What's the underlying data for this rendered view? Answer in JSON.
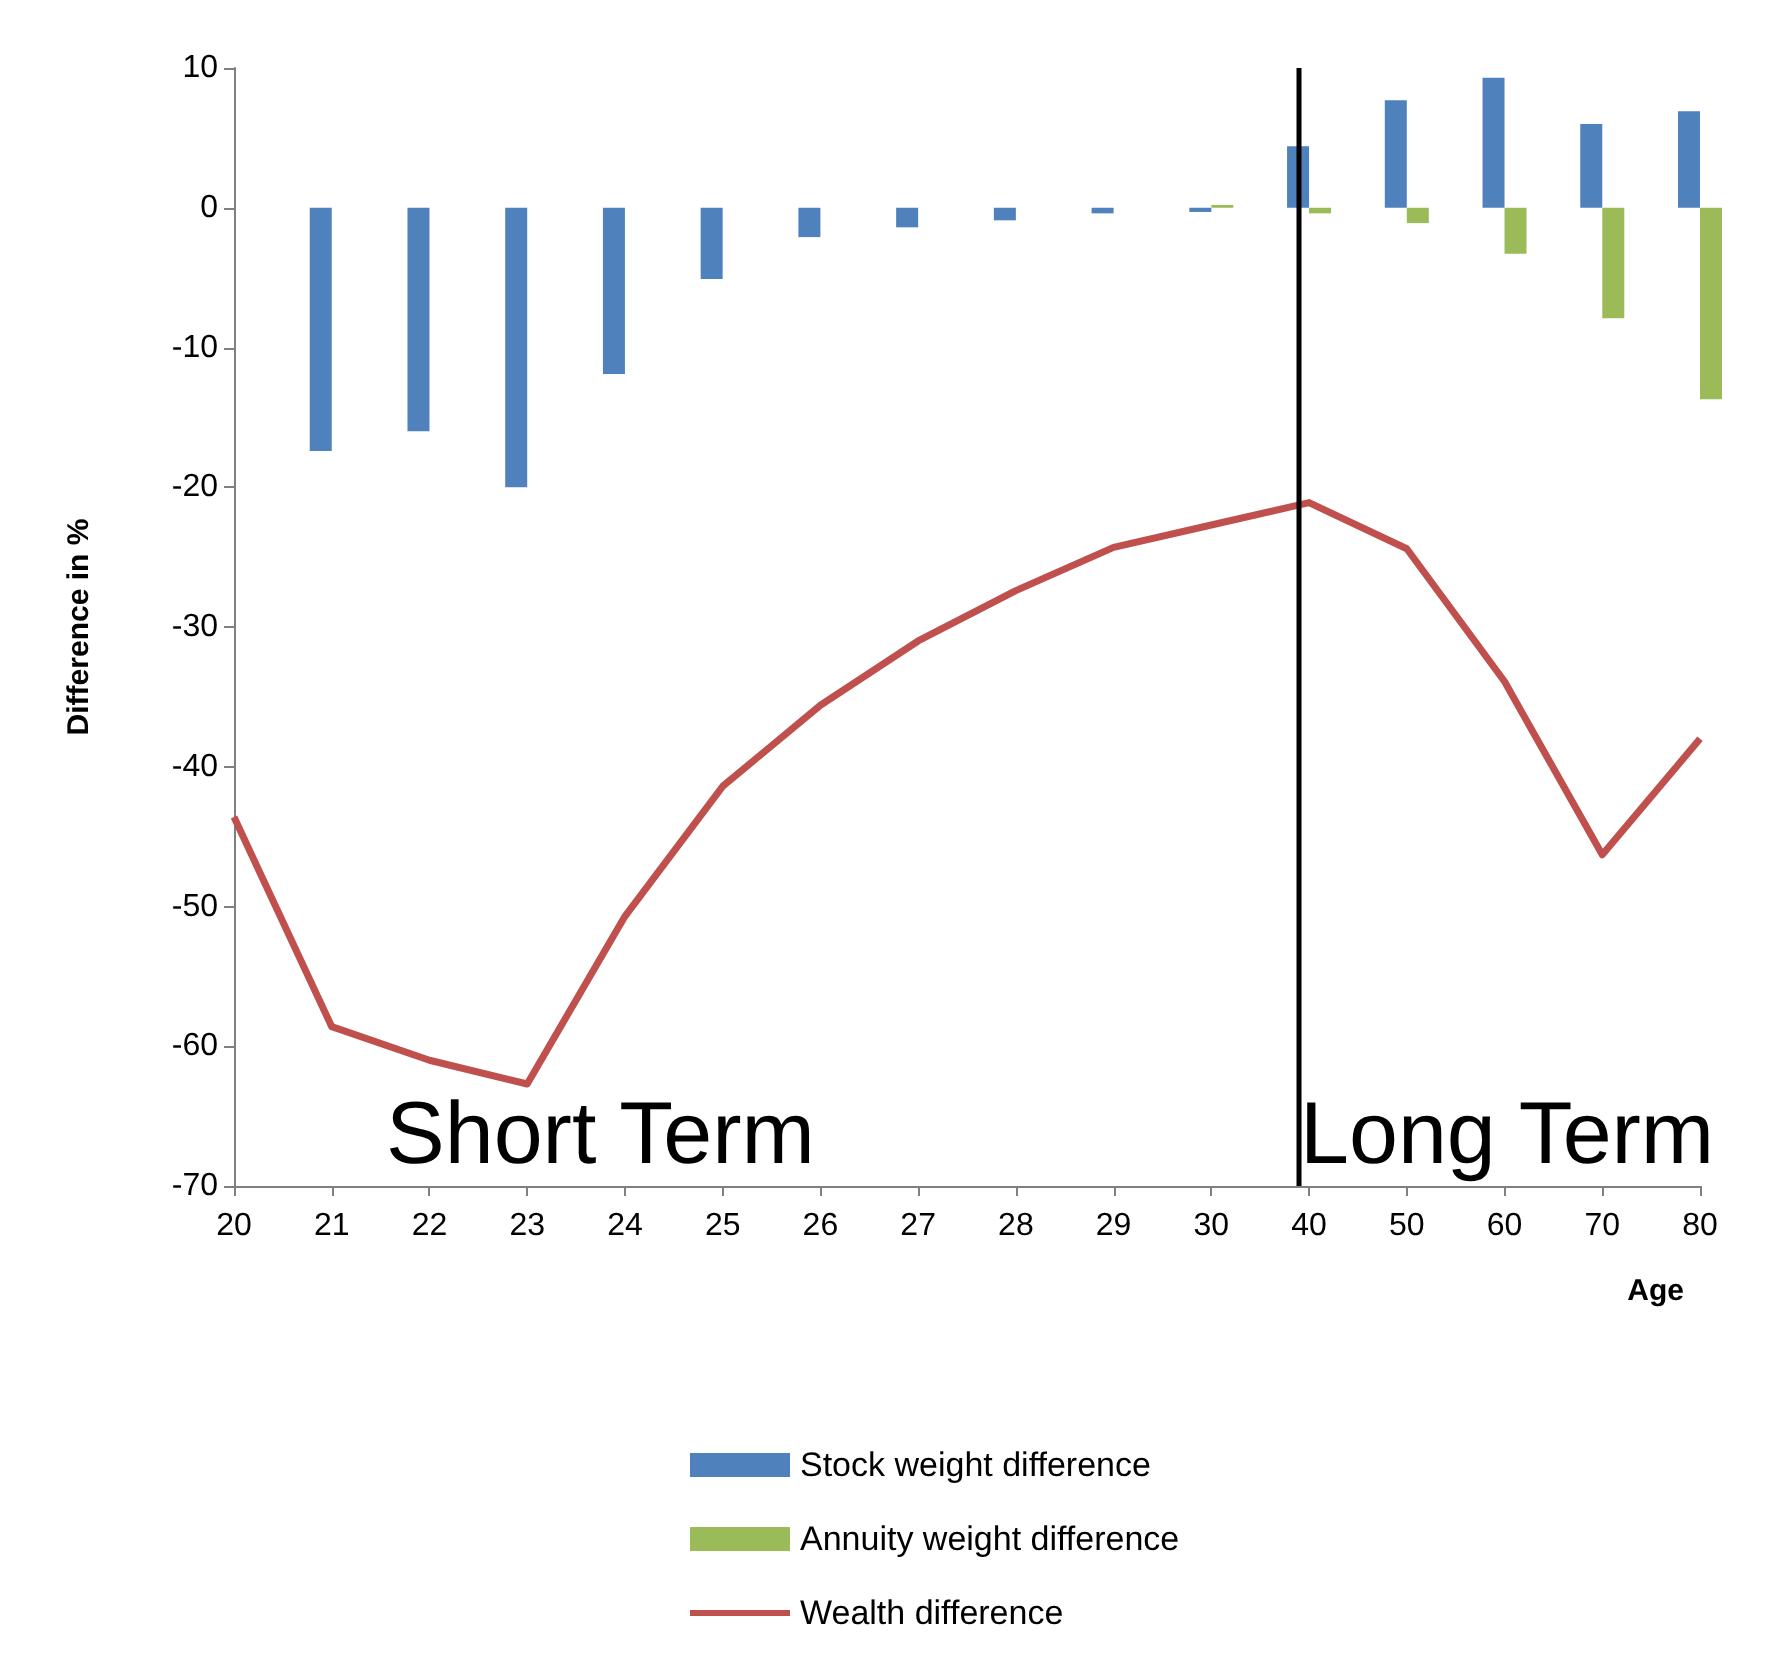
{
  "chart_data": {
    "type": "bar",
    "xlabel": "Age",
    "ylabel": "Difference in %",
    "categories": [
      "20",
      "21",
      "22",
      "23",
      "24",
      "25",
      "26",
      "27",
      "28",
      "29",
      "30",
      "40",
      "50",
      "60",
      "70",
      "80"
    ],
    "series": [
      {
        "name": "Stock weight difference",
        "color": "#4f81bd",
        "values": [
          0,
          -17.4,
          -16,
          -20,
          -11.9,
          -5.1,
          -2.1,
          -1.4,
          -0.9,
          -0.4,
          -0.3,
          4.4,
          7.7,
          9.3,
          6,
          6.9
        ]
      },
      {
        "name": "Annuity weight difference",
        "color": "#9bbb59",
        "values": [
          0,
          0,
          0,
          0,
          0,
          0,
          0,
          0,
          0,
          0,
          0.2,
          -0.4,
          -1.1,
          -3.3,
          -7.9,
          -13.7
        ]
      },
      {
        "name": "Wealth difference",
        "type": "line",
        "color": "#c0504d",
        "values": [
          -43.6,
          -58.6,
          -61,
          -62.7,
          -50.7,
          -41.4,
          -35.6,
          -31,
          -27.4,
          -24.3,
          -22.7,
          -21.1,
          -24.4,
          -33.9,
          -46.3,
          -38
        ]
      }
    ],
    "ylim": [
      -70,
      10
    ],
    "yticks": [
      -70,
      -60,
      -50,
      -40,
      -30,
      -20,
      -10,
      0,
      10
    ],
    "ref_lines": [
      {
        "axis": "x",
        "value": "40",
        "color": "#000000"
      }
    ],
    "annotations": [
      "Short Term",
      "Long Term"
    ],
    "grid": false,
    "legend": "bottom",
    "marker": "none",
    "line_style": "solid"
  }
}
